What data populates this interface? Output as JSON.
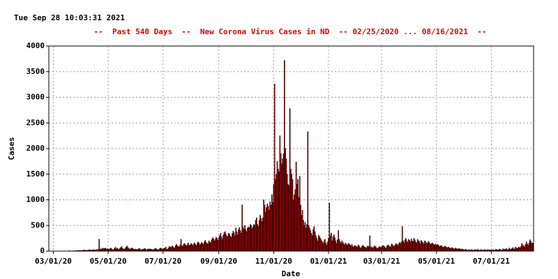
{
  "header": {
    "timestamp": "Tue Sep 28 10:03:31 2021"
  },
  "chart_data": {
    "type": "bar",
    "title": "--  Past 540 Days  --  New Corona Virus Cases in ND  -- 02/25/2020 ... 08/16/2021  --",
    "x_label": "Date",
    "y_label": "Cases",
    "color": "#cc0000",
    "edge_color": "#000000",
    "grid": true,
    "xlim": [
      0,
      539
    ],
    "xticks": [
      {
        "value": 5,
        "label": "03/01/20"
      },
      {
        "value": 66,
        "label": "05/01/20"
      },
      {
        "value": 127,
        "label": "07/01/20"
      },
      {
        "value": 189,
        "label": "09/01/20"
      },
      {
        "value": 250,
        "label": "11/01/20"
      },
      {
        "value": 311,
        "label": "01/01/21"
      },
      {
        "value": 370,
        "label": "03/01/21"
      },
      {
        "value": 431,
        "label": "05/01/21"
      },
      {
        "value": 492,
        "label": "07/01/21"
      }
    ],
    "ylim": [
      0,
      4000
    ],
    "yticks": [
      0,
      500,
      1000,
      1500,
      2000,
      2500,
      3000,
      3500,
      4000
    ],
    "values": [
      0,
      0,
      0,
      0,
      0,
      0,
      0,
      0,
      0,
      0,
      0,
      0,
      0,
      0,
      1,
      0,
      0,
      1,
      0,
      3,
      1,
      3,
      4,
      8,
      2,
      2,
      4,
      6,
      2,
      6,
      9,
      8,
      10,
      12,
      10,
      11,
      14,
      12,
      13,
      22,
      20,
      15,
      12,
      18,
      17,
      30,
      20,
      15,
      24,
      22,
      29,
      21,
      23,
      25,
      30,
      32,
      231,
      40,
      45,
      38,
      60,
      48,
      50,
      60,
      40,
      45,
      35,
      40,
      45,
      60,
      40,
      30,
      28,
      50,
      75,
      45,
      60,
      40,
      35,
      55,
      70,
      90,
      55,
      40,
      35,
      60,
      80,
      100,
      70,
      50,
      40,
      45,
      60,
      55,
      45,
      30,
      40,
      35,
      30,
      40,
      45,
      50,
      30,
      25,
      35,
      40,
      45,
      50,
      30,
      25,
      40,
      35,
      45,
      40,
      35,
      30,
      25,
      40,
      45,
      55,
      35,
      30,
      25,
      45,
      60,
      50,
      40,
      45,
      50,
      60,
      80,
      40,
      35,
      60,
      90,
      80,
      70,
      100,
      90,
      60,
      70,
      110,
      130,
      100,
      90,
      80,
      120,
      230,
      110,
      90,
      140,
      150,
      120,
      100,
      130,
      160,
      110,
      120,
      150,
      130,
      110,
      140,
      160,
      130,
      110,
      150,
      180,
      160,
      120,
      140,
      170,
      150,
      130,
      180,
      210,
      170,
      140,
      150,
      200,
      180,
      160,
      220,
      260,
      240,
      200,
      230,
      270,
      250,
      210,
      260,
      300,
      350,
      280,
      230,
      310,
      360,
      380,
      330,
      280,
      300,
      350,
      320,
      290,
      270,
      340,
      390,
      360,
      300,
      450,
      380,
      320,
      420,
      460,
      400,
      350,
      900,
      470,
      430,
      500,
      420,
      380,
      450,
      470,
      460,
      520,
      500,
      440,
      480,
      520,
      500,
      600,
      650,
      520,
      480,
      600,
      700,
      640,
      580,
      650,
      1000,
      900,
      760,
      850,
      920,
      880,
      800,
      960,
      900,
      1100,
      950,
      1300,
      3260,
      1400,
      1500,
      1750,
      1600,
      1550,
      2250,
      1900,
      1700,
      1800,
      1900,
      3720,
      2000,
      1800,
      1500,
      1300,
      1280,
      2780,
      1600,
      1500,
      1400,
      1000,
      1100,
      1200,
      1740,
      1300,
      1400,
      1050,
      1460,
      900,
      700,
      800,
      600,
      500,
      560,
      450,
      520,
      2330,
      500,
      450,
      400,
      350,
      300,
      420,
      480,
      380,
      300,
      250,
      200,
      310,
      280,
      250,
      220,
      180,
      150,
      200,
      230,
      160,
      120,
      180,
      250,
      940,
      300,
      350,
      200,
      280,
      320,
      260,
      200,
      150,
      220,
      400,
      230,
      180,
      150,
      200,
      170,
      140,
      120,
      160,
      130,
      110,
      150,
      140,
      120,
      100,
      130,
      90,
      80,
      110,
      100,
      90,
      80,
      120,
      100,
      70,
      60,
      90,
      110,
      100,
      80,
      70,
      60,
      90,
      100,
      80,
      300,
      90,
      70,
      60,
      80,
      100,
      90,
      70,
      60,
      50,
      80,
      90,
      70,
      80,
      100,
      110,
      90,
      70,
      60,
      100,
      120,
      110,
      90,
      80,
      140,
      130,
      100,
      90,
      120,
      150,
      130,
      110,
      140,
      170,
      140,
      180,
      480,
      200,
      160,
      220,
      250,
      200,
      170,
      230,
      210,
      180,
      240,
      200,
      190,
      250,
      220,
      180,
      160,
      230,
      200,
      190,
      150,
      210,
      180,
      170,
      140,
      200,
      180,
      160,
      150,
      190,
      170,
      140,
      130,
      160,
      150,
      130,
      120,
      140,
      110,
      130,
      120,
      100,
      90,
      110,
      100,
      80,
      70,
      100,
      90,
      80,
      60,
      80,
      70,
      60,
      50,
      70,
      60,
      50,
      40,
      60,
      50,
      45,
      40,
      50,
      45,
      40,
      35,
      40,
      30,
      25,
      30,
      35,
      20,
      15,
      30,
      25,
      20,
      30,
      25,
      15,
      20,
      30,
      25,
      20,
      35,
      15,
      20,
      25,
      30,
      20,
      15,
      25,
      30,
      20,
      15,
      30,
      25,
      20,
      25,
      20,
      25,
      30,
      15,
      20,
      35,
      30,
      25,
      20,
      40,
      30,
      25,
      20,
      45,
      30,
      40,
      35,
      50,
      25,
      30,
      60,
      40,
      35,
      50,
      70,
      45,
      40,
      80,
      60,
      50,
      70,
      80,
      60,
      90,
      150,
      120,
      100,
      80,
      130,
      180,
      140,
      110,
      160,
      220,
      190,
      150,
      160
    ]
  }
}
